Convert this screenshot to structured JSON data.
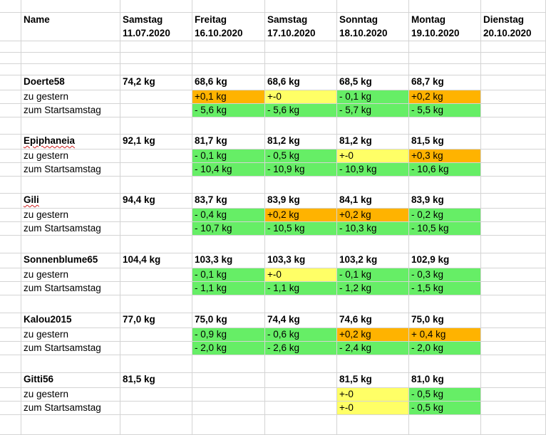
{
  "sheet": {
    "colors": {
      "green": "#66ee66",
      "orange": "#ffb300",
      "yellow": "#ffff66",
      "grid": "#d4d4d4"
    },
    "header": {
      "name_label": "Name",
      "days": [
        {
          "weekday": "Samstag",
          "date": "11.07.2020"
        },
        {
          "weekday": "Freitag",
          "date": "16.10.2020"
        },
        {
          "weekday": "Samstag",
          "date": "17.10.2020"
        },
        {
          "weekday": "Sonntag",
          "date": "18.10.2020"
        },
        {
          "weekday": "Montag",
          "date": "19.10.2020"
        },
        {
          "weekday": "Dienstag",
          "date": "20.10.2020"
        }
      ]
    },
    "persons": [
      {
        "name": "Doerte58",
        "spell": false,
        "weights": [
          "74,2 kg",
          "68,6 kg",
          "68,6 kg",
          "68,5 kg",
          "68,7 kg",
          ""
        ],
        "rows": [
          {
            "label": "zu gestern",
            "cells": [
              {
                "t": "",
                "c": ""
              },
              {
                "t": "+0,1 kg",
                "c": "orange"
              },
              {
                "t": "+-0",
                "c": "yellow"
              },
              {
                "t": "- 0,1 kg",
                "c": "green"
              },
              {
                "t": "+0,2 kg",
                "c": "orange"
              },
              {
                "t": "",
                "c": ""
              }
            ]
          },
          {
            "label": "zum Startsamstag",
            "cells": [
              {
                "t": "",
                "c": ""
              },
              {
                "t": "- 5,6 kg",
                "c": "green"
              },
              {
                "t": "- 5,6 kg",
                "c": "green"
              },
              {
                "t": "- 5,7 kg",
                "c": "green"
              },
              {
                "t": "- 5,5 kg",
                "c": "green"
              },
              {
                "t": "",
                "c": ""
              }
            ]
          }
        ]
      },
      {
        "name": "Epiphaneia",
        "spell": true,
        "weights": [
          "92,1 kg",
          "81,7 kg",
          "81,2 kg",
          "81,2 kg",
          "81,5 kg",
          ""
        ],
        "rows": [
          {
            "label": "zu gestern",
            "cells": [
              {
                "t": "",
                "c": ""
              },
              {
                "t": "-  0,1 kg",
                "c": "green"
              },
              {
                "t": "-  0,5 kg",
                "c": "green"
              },
              {
                "t": "+-0",
                "c": "yellow"
              },
              {
                "t": "+0,3 kg",
                "c": "orange"
              },
              {
                "t": "",
                "c": ""
              }
            ]
          },
          {
            "label": "zum Startsamstag",
            "cells": [
              {
                "t": "",
                "c": ""
              },
              {
                "t": "- 10,4 kg",
                "c": "green"
              },
              {
                "t": "- 10,9 kg",
                "c": "green"
              },
              {
                "t": "- 10,9 kg",
                "c": "green"
              },
              {
                "t": "- 10,6 kg",
                "c": "green"
              },
              {
                "t": "",
                "c": ""
              }
            ]
          }
        ]
      },
      {
        "name": "Gili",
        "spell": true,
        "weights": [
          "94,4 kg",
          "83,7 kg",
          "83,9 kg",
          "84,1 kg",
          "83,9 kg",
          ""
        ],
        "rows": [
          {
            "label": "zu gestern",
            "cells": [
              {
                "t": "",
                "c": ""
              },
              {
                "t": "-  0,4 kg",
                "c": "green"
              },
              {
                "t": "+0,2 kg",
                "c": "orange"
              },
              {
                "t": "+0,2 kg",
                "c": "orange"
              },
              {
                "t": "- 0,2 kg",
                "c": "green"
              },
              {
                "t": "",
                "c": ""
              }
            ]
          },
          {
            "label": "zum Startsamstag",
            "cells": [
              {
                "t": "",
                "c": ""
              },
              {
                "t": "- 10,7 kg",
                "c": "green"
              },
              {
                "t": "- 10,5 kg",
                "c": "green"
              },
              {
                "t": "- 10,3 kg",
                "c": "green"
              },
              {
                "t": "- 10,5 kg",
                "c": "green"
              },
              {
                "t": "",
                "c": ""
              }
            ]
          }
        ]
      },
      {
        "name": "Sonnenblume65",
        "spell": false,
        "weights": [
          "104,4 kg",
          "103,3 kg",
          "103,3 kg",
          "103,2 kg",
          "102,9 kg",
          ""
        ],
        "rows": [
          {
            "label": "zu gestern",
            "cells": [
              {
                "t": "",
                "c": ""
              },
              {
                "t": "- 0,1 kg",
                "c": "green"
              },
              {
                "t": "+-0",
                "c": "yellow"
              },
              {
                "t": "- 0,1 kg",
                "c": "green"
              },
              {
                "t": "- 0,3 kg",
                "c": "green"
              },
              {
                "t": "",
                "c": ""
              }
            ]
          },
          {
            "label": "zum Startsamstag",
            "cells": [
              {
                "t": "",
                "c": ""
              },
              {
                "t": "- 1,1 kg",
                "c": "green"
              },
              {
                "t": "- 1,1 kg",
                "c": "green"
              },
              {
                "t": "- 1,2 kg",
                "c": "green"
              },
              {
                "t": "- 1,5 kg",
                "c": "green"
              },
              {
                "t": "",
                "c": ""
              }
            ]
          }
        ]
      },
      {
        "name": "Kalou2015",
        "spell": false,
        "weights": [
          "77,0 kg",
          "75,0 kg",
          "74,4 kg",
          "74,6 kg",
          "75,0 kg",
          ""
        ],
        "rows": [
          {
            "label": "zu gestern",
            "cells": [
              {
                "t": "",
                "c": ""
              },
              {
                "t": "- 0,9 kg",
                "c": "green"
              },
              {
                "t": "- 0,6 kg",
                "c": "green"
              },
              {
                "t": "+0,2 kg",
                "c": "orange"
              },
              {
                "t": "+ 0,4 kg",
                "c": "orange"
              },
              {
                "t": "",
                "c": ""
              }
            ]
          },
          {
            "label": "zum Startsamstag",
            "cells": [
              {
                "t": "",
                "c": ""
              },
              {
                "t": "- 2,0 kg",
                "c": "green"
              },
              {
                "t": "- 2,6 kg",
                "c": "green"
              },
              {
                "t": "- 2,4 kg",
                "c": "green"
              },
              {
                "t": "- 2,0 kg",
                "c": "green"
              },
              {
                "t": "",
                "c": ""
              }
            ]
          }
        ]
      },
      {
        "name": "Gitti56",
        "spell": false,
        "weights": [
          "81,5 kg",
          "",
          "",
          "81,5 kg",
          "81,0 kg",
          ""
        ],
        "rows": [
          {
            "label": "zu gestern",
            "cells": [
              {
                "t": "",
                "c": ""
              },
              {
                "t": "",
                "c": ""
              },
              {
                "t": "",
                "c": ""
              },
              {
                "t": "+-0",
                "c": "yellow"
              },
              {
                "t": "- 0,5 kg",
                "c": "green"
              },
              {
                "t": "",
                "c": ""
              }
            ]
          },
          {
            "label": "zum Startsamstag",
            "cells": [
              {
                "t": "",
                "c": ""
              },
              {
                "t": "",
                "c": ""
              },
              {
                "t": "",
                "c": ""
              },
              {
                "t": "+-0",
                "c": "yellow"
              },
              {
                "t": "- 0,5 kg",
                "c": "green"
              },
              {
                "t": "",
                "c": ""
              }
            ]
          }
        ]
      }
    ]
  }
}
